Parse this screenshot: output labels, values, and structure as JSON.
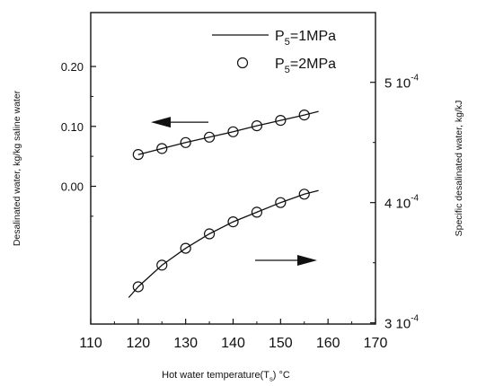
{
  "chart_data": {
    "type": "line",
    "x": [
      120,
      125,
      130,
      135,
      140,
      145,
      150,
      155
    ],
    "xlabel": {
      "main": "Hot water temperature(T",
      "sub": "s",
      "tail": ") °C"
    },
    "ylabel_left": "Desalinated water, kg/kg saline water",
    "ylabel_right": "Specific desalinated water, kg/kJ",
    "xlim": [
      110,
      170
    ],
    "ylim_left": [
      -0.23,
      0.29
    ],
    "ylim_right_range": [
      0.000299,
      0.000558
    ],
    "xticks": [
      "110",
      "120",
      "130",
      "140",
      "150",
      "160",
      "170"
    ],
    "yticks_left": [
      "0.20",
      "0.10",
      "0.00"
    ],
    "yticks_right": [
      {
        "value": 0.0005,
        "base": "5 10",
        "exp": "-4"
      },
      {
        "value": 0.0004,
        "base": "4 10",
        "exp": "-4"
      },
      {
        "value": 0.0003,
        "base": "3 10",
        "exp": "-4"
      }
    ],
    "legend": [
      {
        "style": "line",
        "text": "P",
        "sub": "5",
        "tail": "=1MPa"
      },
      {
        "style": "marker",
        "text": "P",
        "sub": "5",
        "tail": "=2MPa"
      }
    ],
    "legend_position": "top-right",
    "series": [
      {
        "axis": "left",
        "line_x": [
          120,
          125,
          130,
          135,
          140,
          145,
          150,
          155,
          158
        ],
        "line_y": [
          0.053,
          0.063,
          0.073,
          0.082,
          0.091,
          0.101,
          0.11,
          0.119,
          0.125
        ],
        "marker_y": [
          0.053,
          0.063,
          0.073,
          0.082,
          0.091,
          0.101,
          0.11,
          0.119
        ]
      },
      {
        "axis": "right",
        "line_x": [
          118,
          120,
          125,
          130,
          135,
          140,
          145,
          150,
          155,
          158
        ],
        "line_y": [
          0.000321,
          0.00033,
          0.000348,
          0.000362,
          0.000374,
          0.000384,
          0.000392,
          0.0004,
          0.000407,
          0.00041
        ],
        "marker_y": [
          0.00033,
          0.000348,
          0.000362,
          0.000374,
          0.000384,
          0.000392,
          0.0004,
          0.000407
        ]
      }
    ],
    "arrows": [
      {
        "direction": "left",
        "points_to_axis": "left"
      },
      {
        "direction": "right",
        "points_to_axis": "right"
      }
    ]
  }
}
